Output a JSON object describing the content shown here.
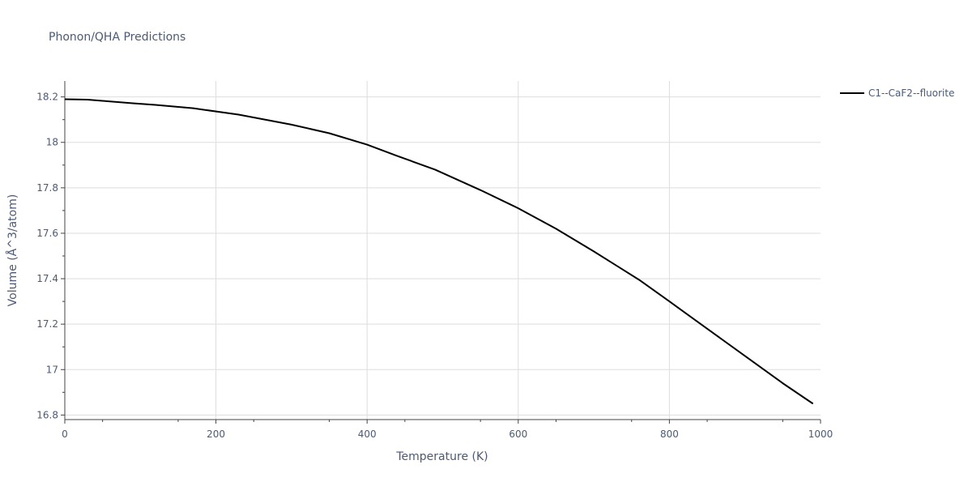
{
  "chart_data": {
    "type": "line",
    "title": "Phonon/QHA Predictions",
    "xlabel": "Temperature (K)",
    "ylabel": "Volume (Å^3/atom)",
    "xlim": [
      0,
      1000
    ],
    "ylim": [
      16.78,
      18.27
    ],
    "xticks": [
      0,
      200,
      400,
      600,
      800,
      1000
    ],
    "xtick_labels": [
      "0",
      "200",
      "400",
      "600",
      "800",
      "1000"
    ],
    "yticks": [
      16.8,
      17.0,
      17.2,
      17.4,
      17.6,
      17.8,
      18.0,
      18.2
    ],
    "ytick_labels": [
      "16.8",
      "17",
      "17.2",
      "17.4",
      "17.6",
      "17.8",
      "18",
      "18.2"
    ],
    "grid": true,
    "legend_position": "top-right",
    "series": [
      {
        "name": "C1--CaF2--fluorite",
        "color": "#000000",
        "x": [
          0,
          30,
          60,
          90,
          120,
          170,
          230,
          300,
          350,
          400,
          440,
          490,
          550,
          600,
          650,
          700,
          760,
          800,
          850,
          900,
          950,
          990
        ],
        "y": [
          18.19,
          18.188,
          18.18,
          18.172,
          18.165,
          18.15,
          18.122,
          18.078,
          18.04,
          17.99,
          17.94,
          17.88,
          17.79,
          17.71,
          17.62,
          17.52,
          17.395,
          17.3,
          17.18,
          17.06,
          16.94,
          16.85
        ]
      }
    ]
  }
}
